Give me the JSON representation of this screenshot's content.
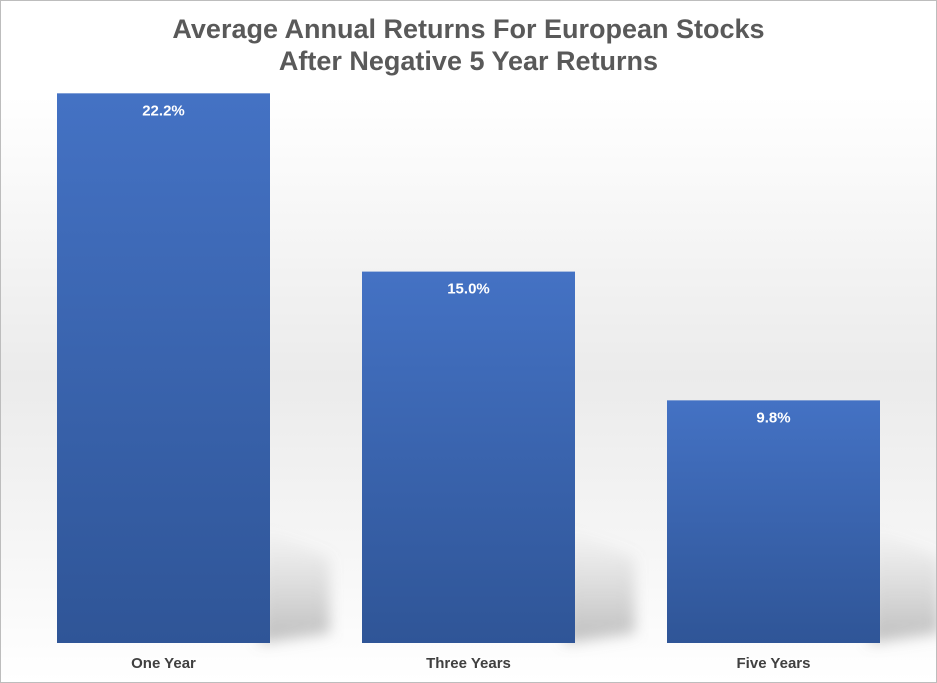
{
  "chart_data": {
    "type": "bar",
    "title_lines": [
      "Average Annual Returns For European Stocks",
      "After Negative 5 Year Returns"
    ],
    "categories": [
      "One Year",
      "Three Years",
      "Five Years"
    ],
    "values": [
      22.2,
      15.0,
      9.8
    ],
    "data_labels": [
      "22.2%",
      "15.0%",
      "9.8%"
    ],
    "ylim": [
      0,
      25
    ],
    "grid": false,
    "legend": "none",
    "colors": {
      "bar_top": "#4472C4",
      "bar_bottom": "#2F5597",
      "title": "#595959",
      "category_text": "#404040",
      "data_label_text": "#FFFFFF"
    }
  }
}
